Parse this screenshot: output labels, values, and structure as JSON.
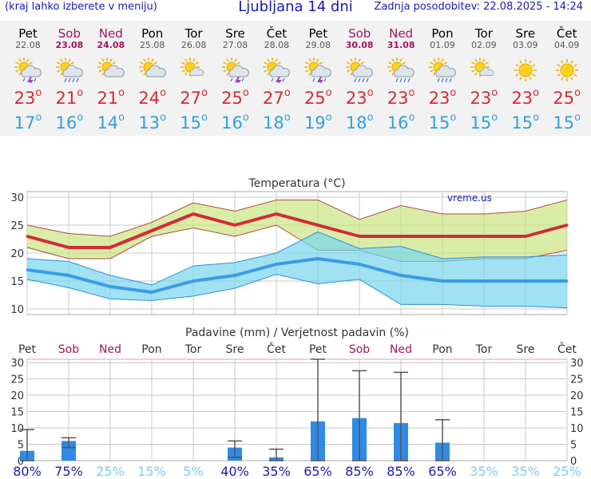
{
  "header": {
    "left_note": "(kraj lahko izberete v meniju)",
    "title": "Ljubljana 14 dni",
    "updated": "Zadnja posodobitev: 22.08.2025 - 14:24"
  },
  "days": [
    {
      "name": "Pet",
      "date": "22.08",
      "weekend": false,
      "icon": "sun-cloud-thunder-icon",
      "tmax": "23",
      "tmin": "17"
    },
    {
      "name": "Sob",
      "date": "23.08",
      "weekend": true,
      "icon": "sun-cloud-rain-icon",
      "tmax": "21",
      "tmin": "16"
    },
    {
      "name": "Ned",
      "date": "24.08",
      "weekend": true,
      "icon": "sun-cloud-icon",
      "tmax": "21",
      "tmin": "14"
    },
    {
      "name": "Pon",
      "date": "25.08",
      "weekend": false,
      "icon": "sun-cloud-icon",
      "tmax": "24",
      "tmin": "13"
    },
    {
      "name": "Tor",
      "date": "26.08",
      "weekend": false,
      "icon": "sun-small-cloud-icon",
      "tmax": "27",
      "tmin": "15"
    },
    {
      "name": "Sre",
      "date": "27.08",
      "weekend": false,
      "icon": "sun-cloud-thunder-icon",
      "tmax": "25",
      "tmin": "16"
    },
    {
      "name": "Čet",
      "date": "28.08",
      "weekend": false,
      "icon": "sun-cloud-thunder-icon",
      "tmax": "27",
      "tmin": "18"
    },
    {
      "name": "Pet",
      "date": "29.08",
      "weekend": false,
      "icon": "sun-cloud-thunder-icon",
      "tmax": "25",
      "tmin": "19"
    },
    {
      "name": "Sob",
      "date": "30.08",
      "weekend": true,
      "icon": "sun-cloud-rain-icon",
      "tmax": "23",
      "tmin": "18"
    },
    {
      "name": "Ned",
      "date": "31.08",
      "weekend": true,
      "icon": "sun-cloud-rain-icon",
      "tmax": "23",
      "tmin": "16"
    },
    {
      "name": "Pon",
      "date": "01.09",
      "weekend": false,
      "icon": "sun-cloud-rain-icon",
      "tmax": "23",
      "tmin": "15"
    },
    {
      "name": "Tor",
      "date": "02.09",
      "weekend": false,
      "icon": "sun-small-cloud-icon",
      "tmax": "23",
      "tmin": "15"
    },
    {
      "name": "Sre",
      "date": "03.09",
      "weekend": false,
      "icon": "sun-icon",
      "tmax": "23",
      "tmin": "15"
    },
    {
      "name": "Čet",
      "date": "04.09",
      "weekend": false,
      "icon": "sun-icon",
      "tmax": "25",
      "tmin": "15"
    }
  ],
  "degree_symbol": "o",
  "colors": {
    "max": "#d42a36",
    "min": "#2ea0df",
    "weekend": "#a0155a",
    "bar": "#2f8be6",
    "grid": "#c8c8c8"
  },
  "chart_data": [
    {
      "type": "line",
      "title": "Temperatura (°C)",
      "watermark": "vreme.us",
      "x": [
        0,
        1,
        2,
        3,
        4,
        5,
        6,
        7,
        8,
        9,
        10,
        11,
        12,
        13
      ],
      "ylim": [
        9,
        31
      ],
      "yticks": [
        10,
        15,
        20,
        25,
        30
      ],
      "series": [
        {
          "role": "max",
          "values": [
            23,
            21,
            21,
            24,
            27,
            25,
            27,
            25,
            23,
            23,
            23,
            23,
            23,
            25
          ]
        },
        {
          "role": "max-upper",
          "values": [
            25,
            23.5,
            23,
            25.5,
            29,
            27.5,
            29.5,
            29.5,
            26,
            28.5,
            27,
            27,
            27.5,
            29.5
          ]
        },
        {
          "role": "max-lower",
          "values": [
            21,
            19,
            19,
            23,
            24.5,
            23,
            25,
            20.5,
            20.5,
            18.5,
            18.5,
            19,
            19,
            20.5
          ]
        },
        {
          "role": "min",
          "values": [
            17,
            16,
            14,
            13,
            15,
            16,
            18,
            19,
            18,
            16,
            15,
            15,
            15,
            15
          ]
        },
        {
          "role": "min-upper",
          "values": [
            19,
            18.5,
            16,
            14.3,
            17.7,
            18.3,
            20,
            23.8,
            20.8,
            21.2,
            19,
            19.3,
            19.3,
            19.7
          ]
        },
        {
          "role": "min-lower",
          "values": [
            15.3,
            13.8,
            11.8,
            11.5,
            12.3,
            13.7,
            16.2,
            14.5,
            15.3,
            10.8,
            10.8,
            10.5,
            10.5,
            10.2
          ]
        }
      ]
    },
    {
      "type": "bar",
      "title": "Padavine (mm) / Verjetnost padavin (%)",
      "categories": [
        "Pet",
        "Sob",
        "Ned",
        "Pon",
        "Tor",
        "Sre",
        "Čet",
        "Pet",
        "Sob",
        "Ned",
        "Pon",
        "Tor",
        "Sre",
        "Čet"
      ],
      "values": [
        3,
        6,
        0,
        0,
        0,
        4,
        1,
        12,
        13,
        11.5,
        5.5,
        0,
        0,
        0
      ],
      "range_low": [
        0,
        4,
        null,
        null,
        null,
        1,
        0,
        0,
        0,
        0,
        0,
        null,
        null,
        null
      ],
      "range_high": [
        9.5,
        7,
        null,
        null,
        null,
        6,
        3.5,
        31,
        27.5,
        27,
        12.5,
        null,
        null,
        null
      ],
      "probability": [
        "80%",
        "75%",
        "25%",
        "15%",
        "5%",
        "40%",
        "35%",
        "65%",
        "85%",
        "85%",
        "65%",
        "35%",
        "35%",
        "25%"
      ],
      "probability_colors": [
        "#1a1ab0",
        "#1a1ab0",
        "#7ecbf0",
        "#7ecbf0",
        "#7ecbf0",
        "#1a1ab0",
        "#1a1ab0",
        "#1a1ab0",
        "#1a1ab0",
        "#1a1ab0",
        "#1a1ab0",
        "#7ecbf0",
        "#7ecbf0",
        "#7ecbf0"
      ],
      "ylim": [
        0,
        31
      ],
      "yticks": [
        0,
        5,
        10,
        15,
        20,
        25,
        30
      ]
    }
  ]
}
